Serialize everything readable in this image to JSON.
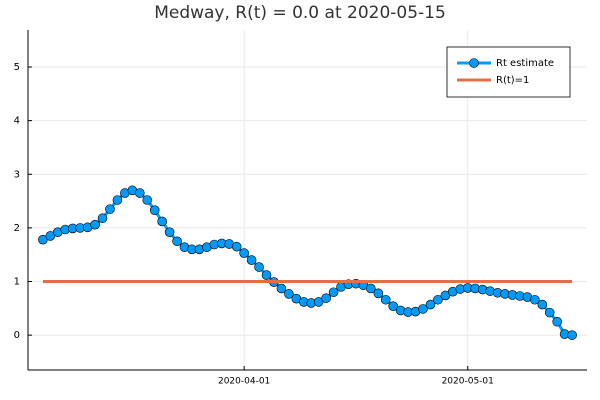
{
  "chart_data": {
    "type": "line",
    "title": "Medway, R(t) = 0.0 at 2020-05-15",
    "series": [
      {
        "name": "Rt estimate",
        "color": "#009af9",
        "markers": true,
        "x": [
          "2020-03-05",
          "2020-03-06",
          "2020-03-07",
          "2020-03-08",
          "2020-03-09",
          "2020-03-10",
          "2020-03-11",
          "2020-03-12",
          "2020-03-13",
          "2020-03-14",
          "2020-03-15",
          "2020-03-16",
          "2020-03-17",
          "2020-03-18",
          "2020-03-19",
          "2020-03-20",
          "2020-03-21",
          "2020-03-22",
          "2020-03-23",
          "2020-03-24",
          "2020-03-25",
          "2020-03-26",
          "2020-03-27",
          "2020-03-28",
          "2020-03-29",
          "2020-03-30",
          "2020-03-31",
          "2020-04-01",
          "2020-04-02",
          "2020-04-03",
          "2020-04-04",
          "2020-04-05",
          "2020-04-06",
          "2020-04-07",
          "2020-04-08",
          "2020-04-09",
          "2020-04-10",
          "2020-04-11",
          "2020-04-12",
          "2020-04-13",
          "2020-04-14",
          "2020-04-15",
          "2020-04-16",
          "2020-04-17",
          "2020-04-18",
          "2020-04-19",
          "2020-04-20",
          "2020-04-21",
          "2020-04-22",
          "2020-04-23",
          "2020-04-24",
          "2020-04-25",
          "2020-04-26",
          "2020-04-27",
          "2020-04-28",
          "2020-04-29",
          "2020-04-30",
          "2020-05-01",
          "2020-05-02",
          "2020-05-03",
          "2020-05-04",
          "2020-05-05",
          "2020-05-06",
          "2020-05-07",
          "2020-05-08",
          "2020-05-09",
          "2020-05-10",
          "2020-05-11",
          "2020-05-12",
          "2020-05-13",
          "2020-05-14",
          "2020-05-15"
        ],
        "values": [
          1.78,
          1.85,
          1.92,
          1.97,
          1.99,
          2.0,
          2.01,
          2.06,
          2.18,
          2.35,
          2.52,
          2.65,
          2.7,
          2.65,
          2.52,
          2.33,
          2.12,
          1.92,
          1.75,
          1.64,
          1.6,
          1.6,
          1.64,
          1.69,
          1.71,
          1.7,
          1.65,
          1.53,
          1.4,
          1.27,
          1.12,
          0.99,
          0.87,
          0.77,
          0.68,
          0.62,
          0.6,
          0.62,
          0.69,
          0.8,
          0.9,
          0.95,
          0.96,
          0.93,
          0.87,
          0.78,
          0.66,
          0.54,
          0.46,
          0.43,
          0.44,
          0.49,
          0.57,
          0.66,
          0.74,
          0.81,
          0.86,
          0.88,
          0.87,
          0.85,
          0.82,
          0.79,
          0.77,
          0.75,
          0.73,
          0.71,
          0.66,
          0.57,
          0.42,
          0.25,
          0.02,
          0.0
        ]
      },
      {
        "name": "R(t)=1",
        "color": "#e26f46",
        "markers": false,
        "x": [
          "2020-03-05",
          "2020-05-15"
        ],
        "values": [
          1,
          1
        ]
      }
    ],
    "xlim": [
      "2020-03-03",
      "2020-05-17"
    ],
    "xticks": [
      "2020-04-01",
      "2020-05-01"
    ],
    "ylim": [
      -0.65,
      5.69
    ],
    "yticks": [
      0,
      1,
      2,
      3,
      4,
      5
    ],
    "grid": true,
    "legend": "top-right"
  }
}
